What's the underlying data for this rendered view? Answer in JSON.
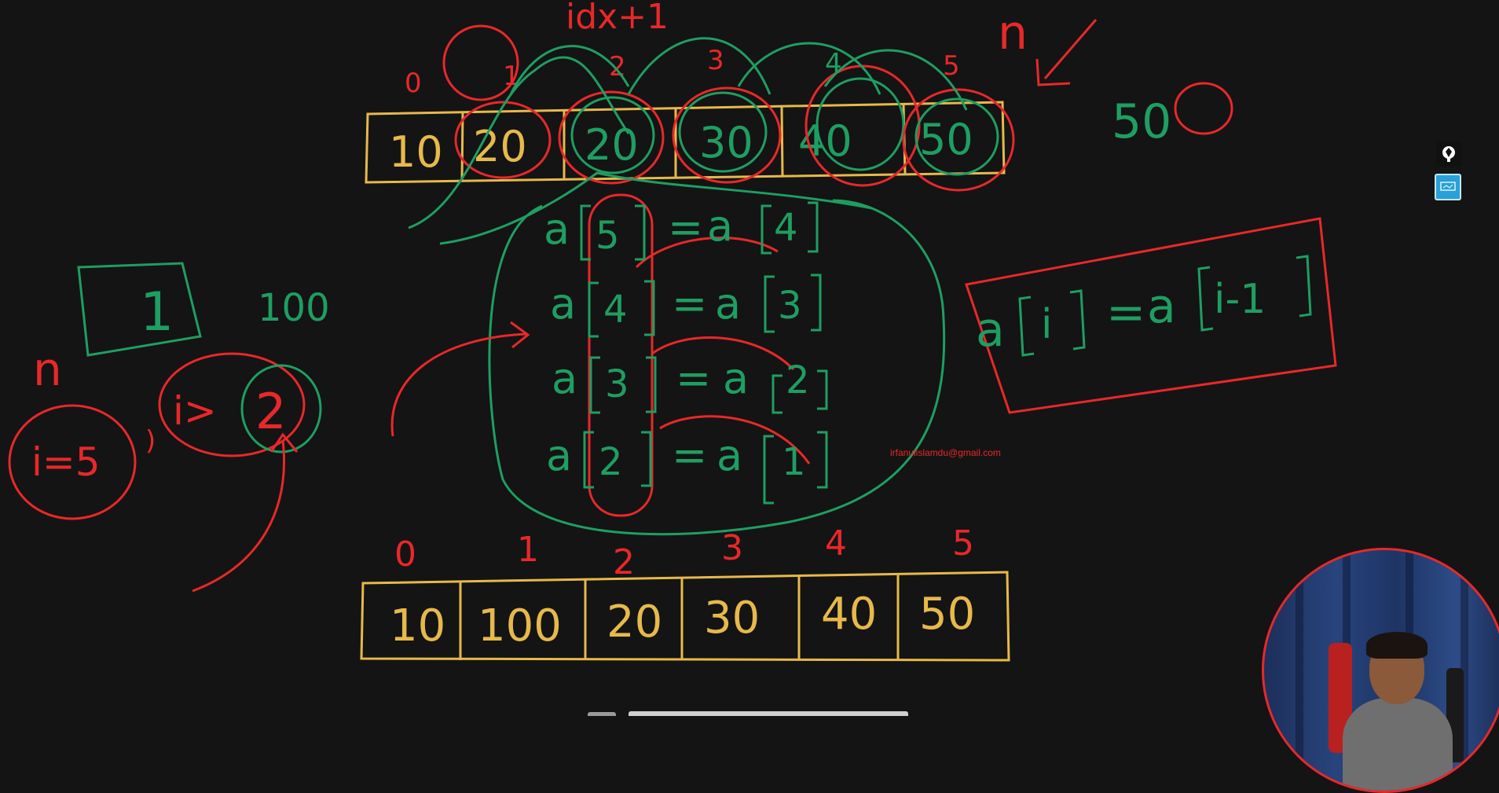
{
  "top_annotation": "idx+1",
  "top_array": {
    "indices": [
      "0",
      "1",
      "2",
      "3",
      "4",
      "5"
    ],
    "values": [
      "10",
      "20",
      "20",
      "30",
      "40",
      "50"
    ]
  },
  "n_label": "n",
  "fifty_label": "50",
  "assignments": [
    {
      "lhs": "a",
      "lhs_idx": "5",
      "rhs": "a",
      "rhs_idx": "4"
    },
    {
      "lhs": "a",
      "lhs_idx": "4",
      "rhs": "a",
      "rhs_idx": "3"
    },
    {
      "lhs": "a",
      "lhs_idx": "3",
      "rhs": "a",
      "rhs_idx": "2"
    },
    {
      "lhs": "a",
      "lhs_idx": "2",
      "rhs": "a",
      "rhs_idx": "1"
    }
  ],
  "formula": {
    "lhs": "a",
    "lhs_idx": "i",
    "eq": "=",
    "rhs": "a",
    "rhs_idx": "i-1"
  },
  "left_notes": {
    "box_value": "1",
    "hundred": "100",
    "n": "n",
    "i_eq_5": "i=5",
    "i_gt": "i>",
    "two": "2"
  },
  "bottom_array": {
    "indices": [
      "0",
      "1",
      "2",
      "3",
      "4",
      "5"
    ],
    "values": [
      "10",
      "100",
      "20",
      "30",
      "40",
      "50"
    ]
  },
  "email": "irfanulislamdu@gmail.com",
  "colors": {
    "yellow": "#e6b94a",
    "green": "#1f9e62",
    "red": "#e8282a",
    "background": "#141414"
  },
  "icons": [
    "pen-tool-icon",
    "whiteboard-icon"
  ]
}
